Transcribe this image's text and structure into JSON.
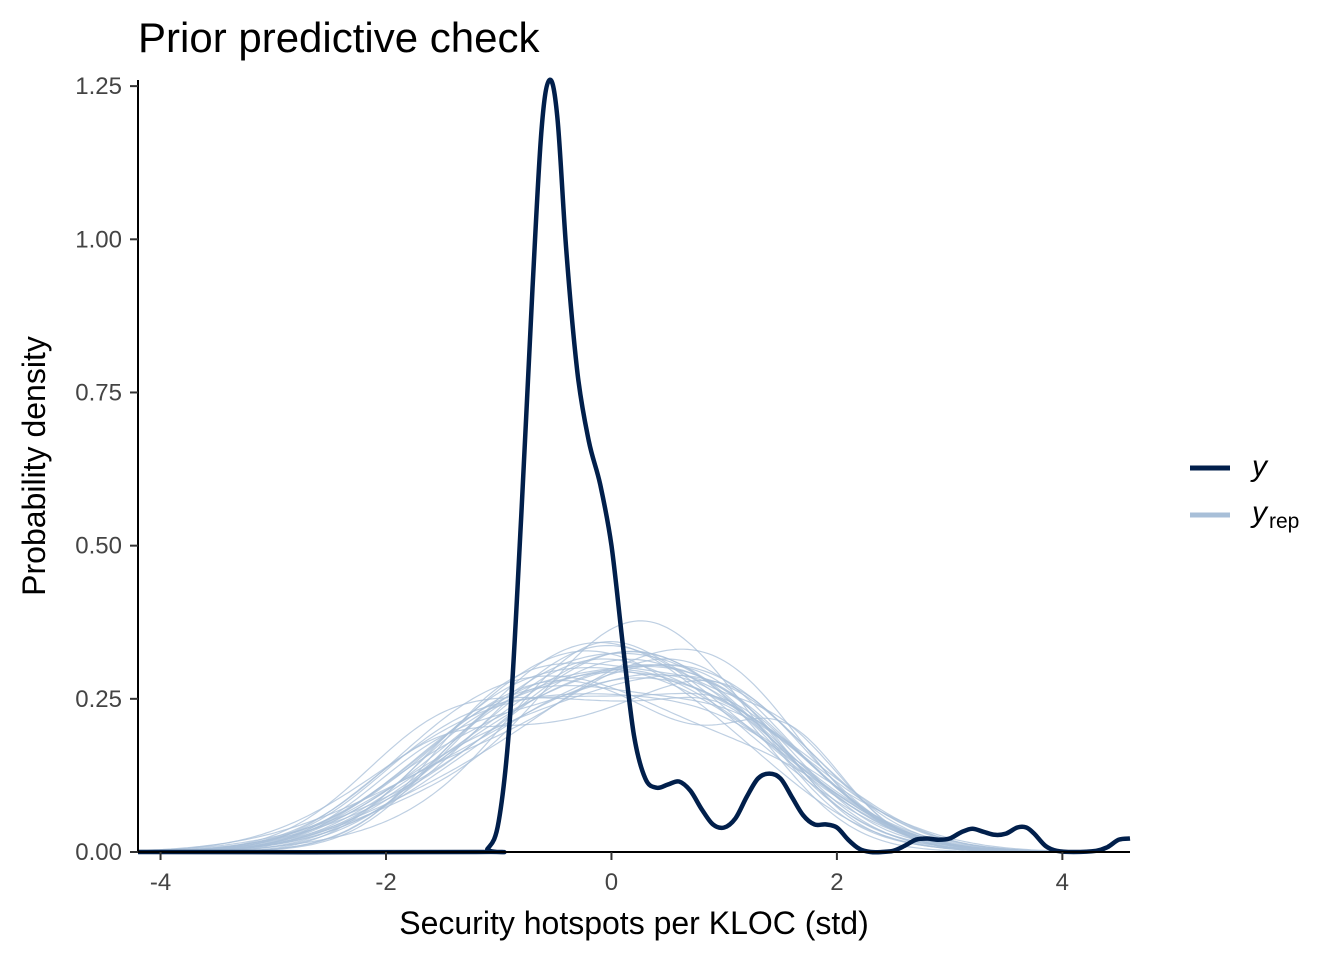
{
  "chart_data": {
    "type": "line",
    "title": "Prior predictive check",
    "xlabel": "Security hotspots per KLOC (std)",
    "ylabel": "Probability density",
    "xlim": [
      -4.2,
      4.6
    ],
    "ylim": [
      0,
      1.26
    ],
    "x_ticks": [
      -4,
      -2,
      0,
      2,
      4
    ],
    "x_tick_labels": [
      "-4",
      "-2",
      "0",
      "2",
      "4"
    ],
    "y_ticks": [
      0,
      0.25,
      0.5,
      0.75,
      1.0,
      1.25
    ],
    "y_tick_labels": [
      "0.00",
      "0.25",
      "0.50",
      "0.75",
      "1.00",
      "1.25"
    ],
    "grid": false,
    "legend_position": "right",
    "legend": [
      {
        "label": "y",
        "subscript": "",
        "color": "#011f4b"
      },
      {
        "label": "y",
        "subscript": "rep",
        "color": "#a8bfd8"
      }
    ],
    "y_observed": {
      "name": "y",
      "color": "#011f4b",
      "points": [
        [
          -4.2,
          0.0
        ],
        [
          -1.2,
          0.0
        ],
        [
          -1.1,
          0.005
        ],
        [
          -1.0,
          0.05
        ],
        [
          -0.9,
          0.22
        ],
        [
          -0.8,
          0.55
        ],
        [
          -0.7,
          0.92
        ],
        [
          -0.62,
          1.18
        ],
        [
          -0.55,
          1.26
        ],
        [
          -0.48,
          1.2
        ],
        [
          -0.4,
          0.98
        ],
        [
          -0.3,
          0.78
        ],
        [
          -0.2,
          0.67
        ],
        [
          -0.1,
          0.6
        ],
        [
          0.0,
          0.5
        ],
        [
          0.1,
          0.34
        ],
        [
          0.2,
          0.19
        ],
        [
          0.3,
          0.12
        ],
        [
          0.4,
          0.105
        ],
        [
          0.5,
          0.11
        ],
        [
          0.6,
          0.115
        ],
        [
          0.7,
          0.1
        ],
        [
          0.8,
          0.07
        ],
        [
          0.9,
          0.045
        ],
        [
          1.0,
          0.04
        ],
        [
          1.1,
          0.055
        ],
        [
          1.2,
          0.09
        ],
        [
          1.3,
          0.12
        ],
        [
          1.4,
          0.128
        ],
        [
          1.5,
          0.12
        ],
        [
          1.6,
          0.09
        ],
        [
          1.7,
          0.06
        ],
        [
          1.8,
          0.045
        ],
        [
          1.9,
          0.045
        ],
        [
          2.0,
          0.04
        ],
        [
          2.1,
          0.02
        ],
        [
          2.2,
          0.005
        ],
        [
          2.3,
          0.0
        ],
        [
          2.4,
          0.0
        ],
        [
          2.5,
          0.002
        ],
        [
          2.6,
          0.01
        ],
        [
          2.7,
          0.02
        ],
        [
          2.8,
          0.022
        ],
        [
          2.9,
          0.02
        ],
        [
          3.0,
          0.022
        ],
        [
          3.1,
          0.032
        ],
        [
          3.2,
          0.038
        ],
        [
          3.3,
          0.033
        ],
        [
          3.4,
          0.028
        ],
        [
          3.5,
          0.03
        ],
        [
          3.6,
          0.04
        ],
        [
          3.68,
          0.04
        ],
        [
          3.75,
          0.03
        ],
        [
          3.85,
          0.01
        ],
        [
          3.95,
          0.002
        ],
        [
          4.1,
          0.0
        ],
        [
          4.3,
          0.002
        ],
        [
          4.4,
          0.008
        ],
        [
          4.5,
          0.02
        ],
        [
          4.6,
          0.022
        ]
      ]
    },
    "y_rep": {
      "name": "y_rep",
      "color": "#a8bfd8",
      "n_draws": 30,
      "mean": 0.0,
      "sd": 1.0,
      "points_note": ""
    }
  }
}
